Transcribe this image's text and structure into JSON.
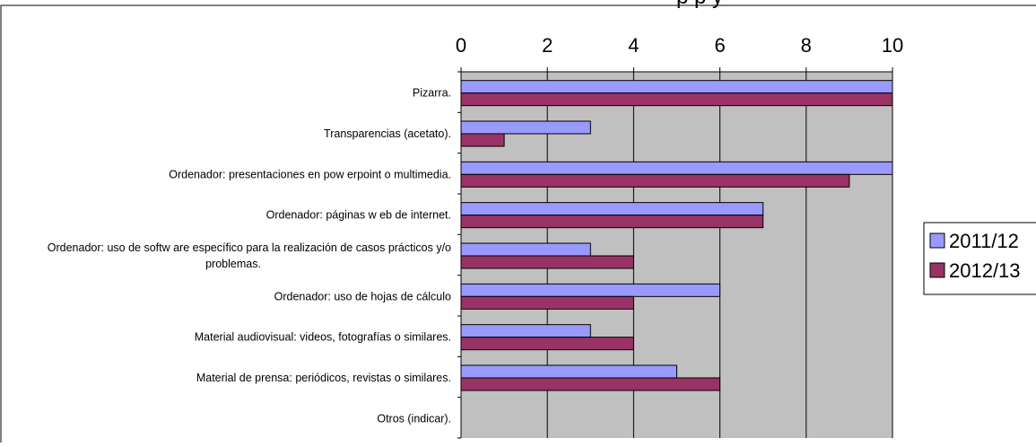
{
  "chart_data": {
    "type": "bar",
    "orientation": "horizontal",
    "title_fragment": "p                    p                              y",
    "categories": [
      "Pizarra.",
      "Transparencias (acetato).",
      "Ordenador: presentaciones en pow erpoint o multimedia.",
      "Ordenador: páginas w eb de internet.",
      "Ordenador: uso de softw are específico para la realización de casos prácticos y/o problemas.",
      "Ordenador: uso de hojas de cálculo",
      "Material audiovisual: videos, fotografías o similares.",
      "Material de prensa: periódicos, revistas o similares.",
      "Otros (indicar)."
    ],
    "category_lines": [
      [
        "Pizarra."
      ],
      [
        "Transparencias (acetato)."
      ],
      [
        "Ordenador: presentaciones en pow erpoint o multimedia."
      ],
      [
        "Ordenador: páginas w eb de internet."
      ],
      [
        "Ordenador: uso de softw are específico para la realización de casos prácticos y/o",
        "problemas."
      ],
      [
        "Ordenador: uso de hojas de cálculo"
      ],
      [
        "Material audiovisual: videos, fotografías o similares."
      ],
      [
        "Material de prensa: periódicos, revistas o similares."
      ],
      [
        "Otros (indicar)."
      ]
    ],
    "series": [
      {
        "name": "2011/12",
        "color": "#9999ff",
        "values": [
          10,
          3,
          10,
          7,
          3,
          6,
          3,
          5,
          0
        ]
      },
      {
        "name": "2012/13",
        "color": "#993366",
        "values": [
          10,
          1,
          9,
          7,
          4,
          4,
          4,
          6,
          0
        ]
      }
    ],
    "xlim": [
      0,
      10
    ],
    "xticks": [
      0,
      2,
      4,
      6,
      8,
      10
    ],
    "grid": true,
    "plot_background": "#c0c0c0",
    "axis_position": "top",
    "legend_position": "right"
  }
}
